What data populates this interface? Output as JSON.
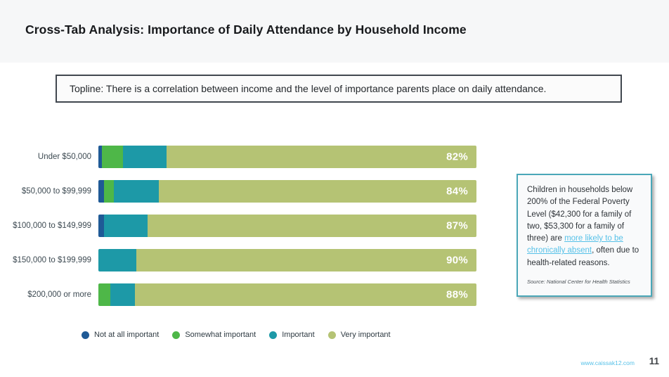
{
  "slide": {
    "title": "Cross-Tab Analysis: Importance of Daily Attendance by Household Income",
    "topline": "Topline: There is a correlation between income and the level of importance parents place on daily attendance.",
    "footer_link": "www.caissak12.com",
    "page_number": "11"
  },
  "chart_data": {
    "type": "bar",
    "orientation": "horizontal_stacked",
    "title": "Importance of Daily Attendance by Household Income",
    "categories": [
      "Under $50,000",
      "$50,000 to $99,999",
      "$100,000 to $149,999",
      "$150,000 to $199,999",
      "$200,000 or more"
    ],
    "series": [
      {
        "name": "Not at all important",
        "color": "#1f5a96",
        "values": [
          1,
          1.5,
          1.5,
          0,
          0
        ]
      },
      {
        "name": "Somewhat important",
        "color": "#4eb748",
        "values": [
          5.5,
          2.5,
          0,
          0,
          3
        ]
      },
      {
        "name": "Important",
        "color": "#1d99a7",
        "values": [
          11.5,
          12,
          11.5,
          10,
          6.5
        ]
      },
      {
        "name": "Very important",
        "color": "#b5c374",
        "values": [
          82,
          84,
          87,
          90,
          88
        ]
      }
    ],
    "bar_value_labels": [
      "82%",
      "84%",
      "87%",
      "90%",
      "88%"
    ],
    "value_label_series": "Very important",
    "xlim": [
      0,
      100
    ],
    "grid": false,
    "legend_position": "bottom"
  },
  "callout": {
    "text_before": "Children in households below 200% of the Federal Poverty Level ($42,300 for a family of two, $53,300 for a family of three) are ",
    "link_text": "more likely to be chronically absent",
    "text_after": ", often due to health-related reasons.",
    "source": "Source: National Center for Health Statistics",
    "border_color": "#4aa7b8",
    "link_color": "#56c1e8"
  }
}
